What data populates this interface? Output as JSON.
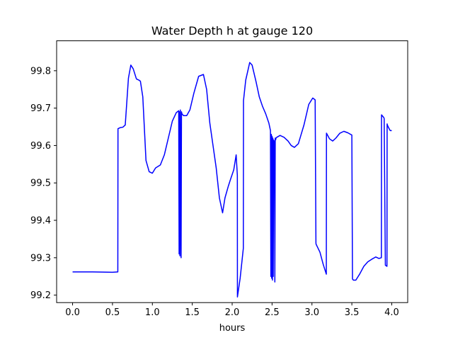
{
  "chart_data": {
    "type": "line",
    "title": "Water Depth h at gauge 120",
    "xlabel": "hours",
    "ylabel": "",
    "xlim": [
      -0.2,
      4.2
    ],
    "ylim": [
      99.18,
      99.88
    ],
    "grid": false,
    "legend": "none",
    "x_ticks": [
      0.0,
      0.5,
      1.0,
      1.5,
      2.0,
      2.5,
      3.0,
      3.5,
      4.0
    ],
    "x_tick_labels": [
      "0.0",
      "0.5",
      "1.0",
      "1.5",
      "2.0",
      "2.5",
      "3.0",
      "3.5",
      "4.0"
    ],
    "y_ticks": [
      99.2,
      99.3,
      99.4,
      99.5,
      99.6,
      99.7,
      99.8
    ],
    "y_tick_labels": [
      "99.2",
      "99.3",
      "99.4",
      "99.5",
      "99.6",
      "99.7",
      "99.8"
    ],
    "series": [
      {
        "color": "#0000ff",
        "x": [
          0.0,
          0.25,
          0.5,
          0.567,
          0.569,
          0.6,
          0.63,
          0.66,
          0.7,
          0.73,
          0.76,
          0.8,
          0.83,
          0.85,
          0.88,
          0.92,
          0.96,
          1.0,
          1.04,
          1.1,
          1.15,
          1.2,
          1.25,
          1.3,
          1.33,
          1.335,
          1.34,
          1.345,
          1.35,
          1.36,
          1.365,
          1.37,
          1.39,
          1.43,
          1.47,
          1.52,
          1.58,
          1.64,
          1.68,
          1.72,
          1.76,
          1.8,
          1.84,
          1.88,
          1.91,
          1.95,
          1.98,
          2.02,
          2.05,
          2.065,
          2.066,
          2.1,
          2.14,
          2.142,
          2.17,
          2.22,
          2.25,
          2.3,
          2.34,
          2.38,
          2.42,
          2.46,
          2.48,
          2.485,
          2.49,
          2.495,
          2.5,
          2.505,
          2.51,
          2.515,
          2.52,
          2.53,
          2.535,
          2.54,
          2.545,
          2.55,
          2.56,
          2.6,
          2.65,
          2.7,
          2.74,
          2.78,
          2.83,
          2.9,
          2.96,
          3.01,
          3.04,
          3.05,
          3.052,
          3.1,
          3.14,
          3.18,
          3.182,
          3.22,
          3.26,
          3.3,
          3.35,
          3.4,
          3.45,
          3.5,
          3.508,
          3.52,
          3.55,
          3.6,
          3.65,
          3.7,
          3.75,
          3.8,
          3.84,
          3.87,
          3.872,
          3.9,
          3.905,
          3.92,
          3.94,
          3.942,
          3.945,
          3.96,
          3.98,
          4.0
        ],
        "y": [
          99.262,
          99.262,
          99.261,
          99.262,
          99.645,
          99.648,
          99.649,
          99.655,
          99.78,
          99.815,
          99.805,
          99.778,
          99.775,
          99.772,
          99.73,
          99.56,
          99.53,
          99.526,
          99.54,
          99.548,
          99.575,
          99.62,
          99.665,
          99.688,
          99.693,
          99.31,
          99.69,
          99.305,
          99.695,
          99.3,
          99.69,
          99.685,
          99.68,
          99.68,
          99.695,
          99.74,
          99.785,
          99.79,
          99.75,
          99.66,
          99.6,
          99.54,
          99.46,
          99.42,
          99.46,
          99.49,
          99.51,
          99.535,
          99.575,
          99.52,
          99.195,
          99.245,
          99.325,
          99.72,
          99.775,
          99.822,
          99.815,
          99.77,
          99.73,
          99.705,
          99.685,
          99.66,
          99.64,
          99.25,
          99.63,
          99.245,
          99.625,
          99.24,
          99.62,
          99.25,
          99.615,
          99.61,
          99.235,
          99.62,
          99.615,
          99.62,
          99.622,
          99.627,
          99.622,
          99.612,
          99.6,
          99.595,
          99.605,
          99.655,
          99.71,
          99.727,
          99.722,
          99.339,
          99.336,
          99.315,
          99.283,
          99.256,
          99.633,
          99.618,
          99.612,
          99.62,
          99.633,
          99.638,
          99.634,
          99.628,
          99.243,
          99.24,
          99.24,
          99.257,
          99.277,
          99.289,
          99.296,
          99.302,
          99.298,
          99.3,
          99.682,
          99.675,
          99.672,
          99.28,
          99.277,
          99.658,
          99.655,
          99.648,
          99.64,
          99.64
        ]
      }
    ]
  }
}
